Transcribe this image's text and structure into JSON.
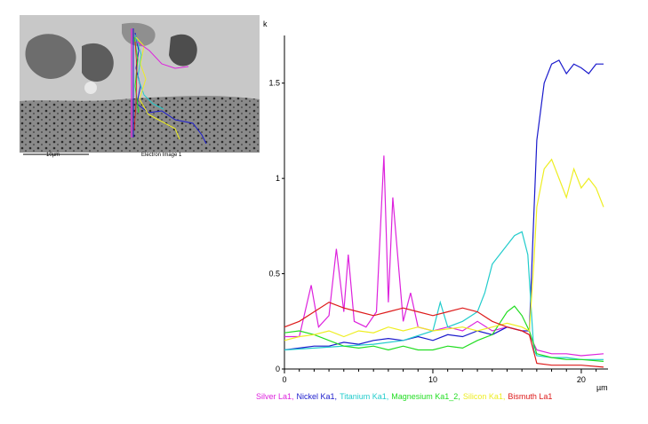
{
  "image": {
    "scale_label": "10µm",
    "caption": "Electron Image 1"
  },
  "chart_data": {
    "type": "line",
    "y_unit": "k",
    "x_unit": "µm",
    "xlim": [
      0,
      21.8
    ],
    "ylim": [
      0,
      1.75
    ],
    "x_ticks": [
      0,
      10,
      20
    ],
    "x_tick_labels": [
      "0",
      "10",
      "20"
    ],
    "y_ticks": [
      0,
      0.5,
      1,
      1.5
    ],
    "y_tick_labels": [
      "0",
      "0.5",
      "1",
      "1.5"
    ],
    "grid": false,
    "legend_position": "bottom",
    "series": [
      {
        "name": "Silver La1",
        "color": "#dd22dd",
        "x": [
          0,
          1,
          1.8,
          2.3,
          3,
          3.5,
          4,
          4.3,
          4.7,
          5.5,
          6.2,
          6.7,
          7,
          7.3,
          8,
          8.5,
          9,
          10,
          11,
          12,
          13,
          14,
          15,
          16,
          16.5,
          17,
          18,
          19,
          20,
          21.5
        ],
        "y": [
          0.17,
          0.17,
          0.44,
          0.22,
          0.28,
          0.63,
          0.3,
          0.6,
          0.25,
          0.22,
          0.3,
          1.12,
          0.35,
          0.9,
          0.25,
          0.4,
          0.22,
          0.2,
          0.22,
          0.2,
          0.25,
          0.2,
          0.22,
          0.2,
          0.18,
          0.1,
          0.08,
          0.08,
          0.07,
          0.08
        ]
      },
      {
        "name": "Nickel Ka1",
        "color": "#1a1acc",
        "x": [
          0,
          1,
          2,
          3,
          4,
          5,
          6,
          7,
          8,
          9,
          10,
          11,
          12,
          13,
          14,
          15,
          16,
          16.5,
          16.8,
          17,
          17.5,
          18,
          18.5,
          19,
          19.5,
          20,
          20.5,
          21,
          21.5
        ],
        "y": [
          0.1,
          0.11,
          0.12,
          0.12,
          0.14,
          0.13,
          0.15,
          0.16,
          0.15,
          0.17,
          0.15,
          0.18,
          0.17,
          0.2,
          0.18,
          0.22,
          0.2,
          0.2,
          0.8,
          1.2,
          1.5,
          1.6,
          1.62,
          1.55,
          1.6,
          1.58,
          1.55,
          1.6,
          1.6
        ]
      },
      {
        "name": "Titanium Ka1",
        "color": "#22cccc",
        "x": [
          0,
          2,
          4,
          6,
          8,
          10,
          10.5,
          11,
          12,
          13,
          13.5,
          14,
          15,
          15.5,
          16,
          16.4,
          16.8,
          17,
          18,
          19,
          20,
          21.5
        ],
        "y": [
          0.1,
          0.11,
          0.12,
          0.13,
          0.15,
          0.2,
          0.35,
          0.22,
          0.25,
          0.3,
          0.4,
          0.55,
          0.65,
          0.7,
          0.72,
          0.6,
          0.1,
          0.07,
          0.06,
          0.06,
          0.05,
          0.05
        ]
      },
      {
        "name": "Magnesium Ka1_2",
        "color": "#22dd22",
        "x": [
          0,
          1,
          2,
          3,
          4,
          5,
          6,
          7,
          8,
          9,
          10,
          11,
          12,
          13,
          14,
          15,
          15.5,
          16,
          16.5,
          17,
          18,
          19,
          20,
          21.5
        ],
        "y": [
          0.19,
          0.2,
          0.18,
          0.15,
          0.12,
          0.11,
          0.12,
          0.1,
          0.12,
          0.1,
          0.1,
          0.12,
          0.11,
          0.15,
          0.18,
          0.3,
          0.33,
          0.28,
          0.2,
          0.08,
          0.06,
          0.05,
          0.05,
          0.04
        ]
      },
      {
        "name": "Silicon Ka1",
        "color": "#eeee22",
        "x": [
          0,
          1,
          2,
          3,
          4,
          5,
          6,
          7,
          8,
          9,
          10,
          11,
          12,
          13,
          14,
          15,
          16,
          16.5,
          16.8,
          17,
          17.5,
          18,
          18.5,
          19,
          19.5,
          20,
          20.5,
          21,
          21.5
        ],
        "y": [
          0.15,
          0.17,
          0.18,
          0.2,
          0.17,
          0.2,
          0.19,
          0.22,
          0.2,
          0.22,
          0.2,
          0.21,
          0.22,
          0.2,
          0.22,
          0.24,
          0.22,
          0.2,
          0.55,
          0.85,
          1.05,
          1.1,
          1.0,
          0.9,
          1.05,
          0.95,
          1.0,
          0.95,
          0.85
        ]
      },
      {
        "name": "Bismuth La1",
        "color": "#dd1a1a",
        "x": [
          0,
          1,
          2,
          3,
          4,
          5,
          6,
          7,
          8,
          9,
          10,
          11,
          12,
          13,
          14,
          15,
          16,
          16.5,
          17,
          18,
          19,
          20,
          21.5
        ],
        "y": [
          0.22,
          0.25,
          0.3,
          0.35,
          0.32,
          0.3,
          0.28,
          0.3,
          0.32,
          0.3,
          0.28,
          0.3,
          0.32,
          0.3,
          0.25,
          0.22,
          0.2,
          0.18,
          0.03,
          0.02,
          0.02,
          0.02,
          0.01
        ]
      }
    ]
  }
}
